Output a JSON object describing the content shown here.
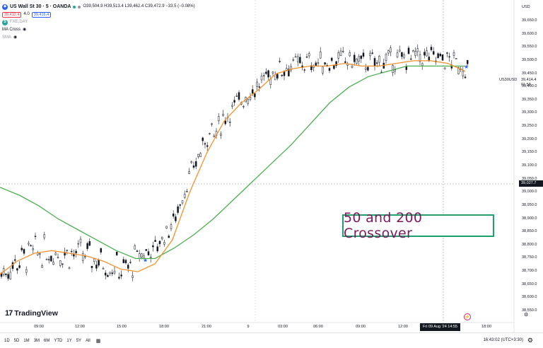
{
  "header": {
    "symbol_title": "US Wall St 30 · 5 · OANDA",
    "ohlc": "O39,504.9 H39,513.4 L39,462.4 C39,472.9 −33.5 (−0.08%)",
    "sell_price": "39,412.4",
    "spread": "4.0",
    "buy_price": "39,416.4",
    "indicators": [
      {
        "label": "FXE;DAY",
        "muted": true
      },
      {
        "label": "MA Cross",
        "muted": false
      },
      {
        "label": "SMA",
        "muted": true
      }
    ]
  },
  "price_axis": {
    "currency": "USD",
    "labels": [
      "39,650.0",
      "39,600.0",
      "39,550.0",
      "39,500.0",
      "39,450.0",
      "39,400.0",
      "39,350.0",
      "39,300.0",
      "39,250.0",
      "39,200.0",
      "39,150.0",
      "39,100.0",
      "39,050.0",
      "39,000.0",
      "38,950.0",
      "38,900.0",
      "38,850.0",
      "38,800.0",
      "38,750.0",
      "38,700.0",
      "38,650.0",
      "38,600.0",
      "38,550.0"
    ],
    "symbol_tag": "US30USD",
    "last_price": "39,414.4",
    "countdown": "01:58",
    "crosshair_price": "39,027.7"
  },
  "time_axis": {
    "labels": [
      "09:00",
      "12:00",
      "15:00",
      "18:00",
      "21:00",
      "9",
      "03:00",
      "06:00",
      "09:00",
      "12:00",
      "18:00"
    ],
    "crosshair_time": "Fri 09 Aug '24   14:55"
  },
  "toolbar": {
    "ranges": [
      "1D",
      "5D",
      "1M",
      "3M",
      "6M",
      "YTD",
      "1Y",
      "5Y",
      "All"
    ],
    "clock": "16:43:02 (UTC+3:30)"
  },
  "annotation": "50 and 200 Crossover",
  "logo": "TradingView",
  "colors": {
    "ma50": "#f5912b",
    "ma200": "#4caf50",
    "candle": "#131722",
    "annotation_border": "#22a06b",
    "annotation_text": "#7b1a5e",
    "marker": "#2962ff"
  },
  "chart_data": {
    "type": "candlestick",
    "title": "US Wall St 30 · 5 · OANDA",
    "ylim": [
      38550,
      39680
    ],
    "series": [
      {
        "name": "MA Cross",
        "values": [
          38690,
          38740,
          38770,
          38780,
          38770,
          38760,
          38740,
          38710,
          38700,
          38730,
          38820,
          39000,
          39150,
          39270,
          39340,
          39390,
          39450,
          39470,
          39480,
          39480,
          39490,
          39480,
          39480,
          39490,
          39500,
          39500,
          39490,
          39460
        ]
      },
      {
        "name": "SMA",
        "values": [
          39020,
          38990,
          38950,
          38900,
          38860,
          38820,
          38780,
          38750,
          38750,
          38790,
          38840,
          38900,
          38970,
          39040,
          39110,
          39180,
          39260,
          39340,
          39400,
          39440,
          39460,
          39480,
          39480,
          39480,
          39480
        ]
      }
    ]
  }
}
